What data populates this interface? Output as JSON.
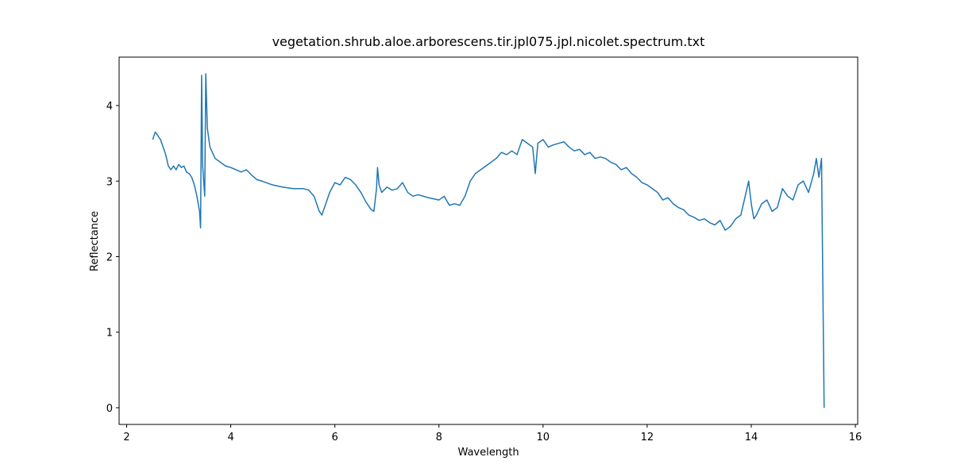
{
  "chart_data": {
    "type": "line",
    "title": "vegetation.shrub.aloe.arborescens.tir.jpl075.jpl.nicolet.spectrum.txt",
    "x_label": "Wavelength",
    "y_label": "Reflectance",
    "xlim": [
      1.855,
      16.045
    ],
    "ylim": [
      -0.221,
      4.641
    ],
    "xticks": [
      2,
      4,
      6,
      8,
      10,
      12,
      14,
      16
    ],
    "yticks": [
      0,
      1,
      2,
      3,
      4
    ],
    "grid": false,
    "series": [
      {
        "color": "#1f77b4",
        "x": [
          2.5,
          2.55,
          2.6,
          2.65,
          2.7,
          2.75,
          2.8,
          2.85,
          2.9,
          2.95,
          3.0,
          3.05,
          3.1,
          3.15,
          3.2,
          3.25,
          3.3,
          3.35,
          3.4,
          3.42,
          3.44,
          3.46,
          3.48,
          3.5,
          3.52,
          3.55,
          3.6,
          3.7,
          3.8,
          3.9,
          4.0,
          4.1,
          4.2,
          4.3,
          4.4,
          4.5,
          4.6,
          4.8,
          5.0,
          5.2,
          5.4,
          5.5,
          5.6,
          5.7,
          5.75,
          5.8,
          5.9,
          6.0,
          6.1,
          6.2,
          6.3,
          6.4,
          6.5,
          6.6,
          6.7,
          6.75,
          6.8,
          6.82,
          6.85,
          6.9,
          7.0,
          7.1,
          7.2,
          7.3,
          7.4,
          7.5,
          7.6,
          7.8,
          8.0,
          8.1,
          8.2,
          8.3,
          8.4,
          8.5,
          8.6,
          8.7,
          8.8,
          9.0,
          9.1,
          9.2,
          9.3,
          9.4,
          9.5,
          9.6,
          9.7,
          9.8,
          9.85,
          9.9,
          10.0,
          10.1,
          10.2,
          10.3,
          10.4,
          10.5,
          10.6,
          10.7,
          10.8,
          10.9,
          11.0,
          11.1,
          11.2,
          11.3,
          11.4,
          11.5,
          11.6,
          11.7,
          11.8,
          11.9,
          12.0,
          12.1,
          12.2,
          12.3,
          12.4,
          12.5,
          12.6,
          12.7,
          12.8,
          12.9,
          13.0,
          13.1,
          13.2,
          13.3,
          13.4,
          13.5,
          13.6,
          13.7,
          13.8,
          13.85,
          13.9,
          13.95,
          14.0,
          14.05,
          14.1,
          14.2,
          14.3,
          14.4,
          14.5,
          14.6,
          14.7,
          14.8,
          14.9,
          15.0,
          15.1,
          15.2,
          15.25,
          15.3,
          15.35,
          15.4
        ],
        "values": [
          3.55,
          3.65,
          3.6,
          3.55,
          3.45,
          3.35,
          3.2,
          3.15,
          3.2,
          3.15,
          3.22,
          3.18,
          3.2,
          3.12,
          3.1,
          3.05,
          2.95,
          2.8,
          2.6,
          2.38,
          4.4,
          3.2,
          3.0,
          2.8,
          4.42,
          3.7,
          3.45,
          3.3,
          3.25,
          3.2,
          3.18,
          3.15,
          3.12,
          3.15,
          3.08,
          3.02,
          3.0,
          2.95,
          2.92,
          2.9,
          2.9,
          2.88,
          2.8,
          2.6,
          2.55,
          2.65,
          2.85,
          2.98,
          2.95,
          3.05,
          3.02,
          2.95,
          2.85,
          2.72,
          2.62,
          2.6,
          2.9,
          3.18,
          2.95,
          2.85,
          2.92,
          2.88,
          2.9,
          2.98,
          2.85,
          2.8,
          2.82,
          2.78,
          2.75,
          2.8,
          2.68,
          2.7,
          2.68,
          2.8,
          3.0,
          3.1,
          3.15,
          3.25,
          3.3,
          3.38,
          3.35,
          3.4,
          3.35,
          3.55,
          3.5,
          3.45,
          3.1,
          3.5,
          3.55,
          3.45,
          3.48,
          3.5,
          3.52,
          3.45,
          3.4,
          3.42,
          3.35,
          3.38,
          3.3,
          3.32,
          3.3,
          3.25,
          3.22,
          3.15,
          3.18,
          3.1,
          3.05,
          2.98,
          2.95,
          2.9,
          2.85,
          2.75,
          2.78,
          2.7,
          2.65,
          2.62,
          2.55,
          2.52,
          2.48,
          2.5,
          2.45,
          2.42,
          2.48,
          2.35,
          2.4,
          2.5,
          2.55,
          2.7,
          2.85,
          3.0,
          2.7,
          2.5,
          2.55,
          2.7,
          2.75,
          2.6,
          2.65,
          2.9,
          2.8,
          2.75,
          2.95,
          3.0,
          2.85,
          3.1,
          3.3,
          3.05,
          3.3,
          0.0
        ]
      }
    ]
  }
}
